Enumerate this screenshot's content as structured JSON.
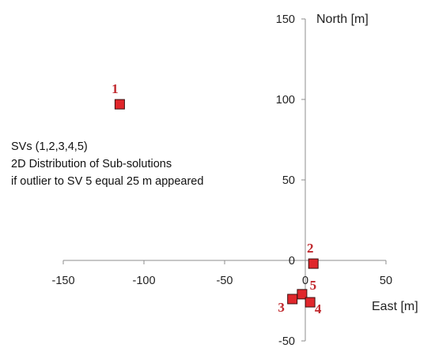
{
  "chart_data": {
    "type": "scatter",
    "title": "",
    "xlabel": "East [m]",
    "ylabel": "North [m]",
    "xlim": [
      -150,
      50
    ],
    "ylim": [
      -50,
      150
    ],
    "xticks": [
      -150,
      -100,
      -50,
      0,
      50
    ],
    "yticks": [
      -50,
      0,
      50,
      100,
      150
    ],
    "grid": false,
    "points": [
      {
        "label": "1",
        "x": -115,
        "y": 97
      },
      {
        "label": "2",
        "x": 5,
        "y": -2
      },
      {
        "label": "5",
        "x": -2,
        "y": -21
      },
      {
        "label": "3",
        "x": -8,
        "y": -24
      },
      {
        "label": "4",
        "x": 3,
        "y": -26
      }
    ],
    "marker_color": "#e0262b",
    "label_color": "#c0282d",
    "annotation": [
      "SVs (1,2,3,4,5)",
      "2D Distribution of Sub-solutions",
      "if outlier  to SV 5 equal 25 m appeared"
    ]
  }
}
